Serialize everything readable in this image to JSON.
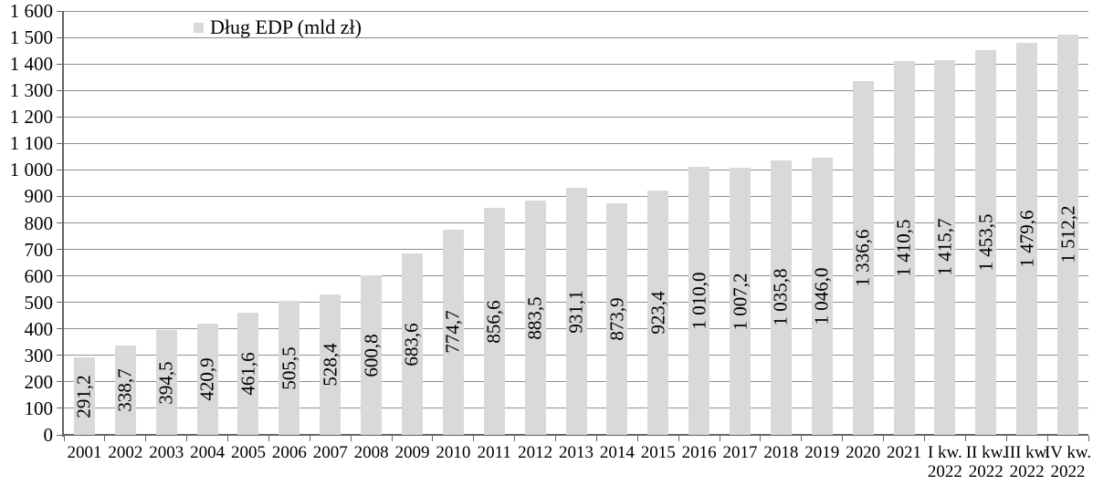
{
  "chart_data": {
    "type": "bar",
    "title": "",
    "xlabel": "",
    "ylabel": "",
    "legend": {
      "label": "Dług EDP (mld zł)",
      "position": "top"
    },
    "grid": true,
    "ylim": [
      0,
      1600
    ],
    "ytick_step": 100,
    "ytick_labels": [
      "0",
      "100",
      "200",
      "300",
      "400",
      "500",
      "600",
      "700",
      "800",
      "900",
      "1 000",
      "1 100",
      "1 200",
      "1 300",
      "1 400",
      "1 500",
      "1 600"
    ],
    "categories": [
      "2001",
      "2002",
      "2003",
      "2004",
      "2005",
      "2006",
      "2007",
      "2008",
      "2009",
      "2010",
      "2011",
      "2012",
      "2013",
      "2014",
      "2015",
      "2016",
      "2017",
      "2018",
      "2019",
      "2020",
      "2021",
      "I kw. 2022",
      "II kw. 2022",
      "III kw. 2022",
      "IV kw. 2022"
    ],
    "category_lines": [
      [
        "2001"
      ],
      [
        "2002"
      ],
      [
        "2003"
      ],
      [
        "2004"
      ],
      [
        "2005"
      ],
      [
        "2006"
      ],
      [
        "2007"
      ],
      [
        "2008"
      ],
      [
        "2009"
      ],
      [
        "2010"
      ],
      [
        "2011"
      ],
      [
        "2012"
      ],
      [
        "2013"
      ],
      [
        "2014"
      ],
      [
        "2015"
      ],
      [
        "2016"
      ],
      [
        "2017"
      ],
      [
        "2018"
      ],
      [
        "2019"
      ],
      [
        "2020"
      ],
      [
        "2021"
      ],
      [
        "I kw.",
        "2022"
      ],
      [
        "II kw.",
        "2022"
      ],
      [
        "III kw.",
        "2022"
      ],
      [
        "IV kw.",
        "2022"
      ]
    ],
    "series": [
      {
        "name": "Dług EDP (mld zł)",
        "values": [
          291.2,
          338.7,
          394.5,
          420.9,
          461.6,
          505.5,
          528.4,
          600.8,
          683.6,
          774.7,
          856.6,
          883.5,
          931.1,
          873.9,
          923.4,
          1010.0,
          1007.2,
          1035.8,
          1046.0,
          1336.6,
          1410.5,
          1415.7,
          1453.5,
          1479.6,
          1512.2
        ],
        "value_labels": [
          "291,2",
          "338,7",
          "394,5",
          "420,9",
          "461,6",
          "505,5",
          "528,4",
          "600,8",
          "683,6",
          "774,7",
          "856,6",
          "883,5",
          "931,1",
          "873,9",
          "923,4",
          "1 010,0",
          "1 007,2",
          "1 035,8",
          "1 046,0",
          "1 336,6",
          "1 410,5",
          "1 415,7",
          "1 453,5",
          "1 479,6",
          "1 512,2"
        ]
      }
    ],
    "colors": {
      "bar": "#D9D9D9",
      "gridline": "#8F8F8F",
      "axis": "#666666",
      "text": "#000000",
      "background": "#FFFFFF"
    }
  }
}
